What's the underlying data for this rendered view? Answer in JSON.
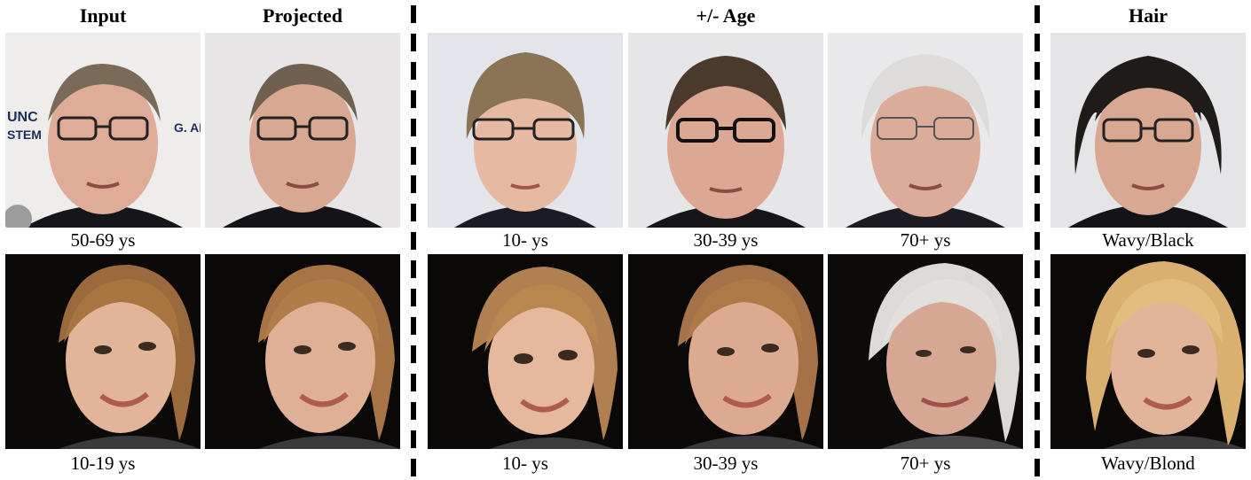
{
  "headers": {
    "input": "Input",
    "projected": "Projected",
    "age": "+/- Age",
    "hair": "Hair"
  },
  "row1": {
    "input_caption": "50-69 ys",
    "age_captions": [
      "10- ys",
      "30-39 ys",
      "70+ ys"
    ],
    "hair_caption": "Wavy/Black"
  },
  "row2": {
    "input_caption": "10-19 ys",
    "age_captions": [
      "10- ys",
      "30-39 ys",
      "70+ ys"
    ],
    "hair_caption": "Wavy/Blond"
  },
  "colors": {
    "skin_light": "#e2b49a",
    "hair_brown": "#6b5a44",
    "hair_grey": "#dcdcdc",
    "hair_black": "#1e1b19",
    "hair_blond": "#d9b070",
    "hair_auburn": "#9a6a3c",
    "bg_light": "#e8e6e4",
    "bg_dark": "#0c0a09"
  }
}
